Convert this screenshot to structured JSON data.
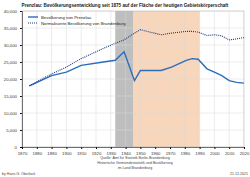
{
  "chart_data": {
    "type": "line",
    "title": "Prenzlau: Bevölkerungsentwicklung seit 1875 auf der Fläche der heutigen Gebietskörperschaft",
    "x": [
      1875,
      1890,
      1900,
      1910,
      1925,
      1933,
      1939,
      1946,
      1950,
      1964,
      1971,
      1981,
      1985,
      1989,
      1995,
      2000,
      2005,
      2010,
      2015,
      2020
    ],
    "series": [
      {
        "name": "Bevölkerung von Prenzlau",
        "color": "#2a6ebb",
        "line_style": "solid",
        "values": [
          18000,
          21000,
          22000,
          24000,
          25000,
          25500,
          28000,
          19500,
          22500,
          22500,
          23500,
          25500,
          26000,
          25800,
          23000,
          22000,
          21000,
          19500,
          19000,
          18800
        ]
      },
      {
        "name": "Normalisierte Bevölkerung von Brandenburg",
        "color": "#1a3a7a",
        "line_style": "dotted",
        "values": [
          18000,
          21500,
          23500,
          26000,
          29000,
          30500,
          31500,
          33500,
          34500,
          33000,
          33500,
          34000,
          34000,
          33800,
          32800,
          33000,
          32700,
          31500,
          31800,
          32200
        ]
      }
    ],
    "xlim": [
      1870,
      2020
    ],
    "xticks": [
      1870,
      1880,
      1890,
      1900,
      1910,
      1920,
      1930,
      1940,
      1950,
      1960,
      1970,
      1980,
      1990,
      2000,
      2010,
      2020
    ],
    "ylim": [
      0,
      40000
    ],
    "yticks": [
      0,
      {
        "value": 5000,
        "label": "5,000"
      },
      {
        "value": 10000,
        "label": "10,000"
      },
      {
        "value": 15000,
        "label": "15,000"
      },
      {
        "value": 20000,
        "label": "20,000"
      },
      {
        "value": 25000,
        "label": "25,000"
      },
      {
        "value": 30000,
        "label": "30,000"
      },
      {
        "value": 35000,
        "label": "35,000"
      },
      {
        "value": 40000,
        "label": "40,000"
      }
    ],
    "grid": true,
    "legend": "upper left",
    "bands": [
      {
        "from": 1933,
        "to": 1945,
        "color": "#a8a8a8"
      },
      {
        "from": 1945,
        "to": 1990,
        "color": "#f6c8a4"
      }
    ],
    "source": [
      "Quelle: Amt für Statistik Berlin-Brandenburg",
      "Historische Gemeindestatistik und Bevölkerung",
      "im Land Brandenburg"
    ],
    "author": "by Hans G. Oberlack",
    "date": "21.12.2021"
  }
}
